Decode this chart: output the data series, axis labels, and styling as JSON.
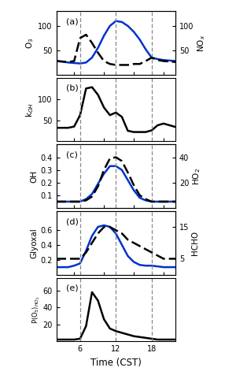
{
  "time": [
    2,
    3,
    4,
    5,
    6,
    7,
    8,
    9,
    10,
    11,
    12,
    13,
    14,
    15,
    16,
    17,
    18,
    19,
    20,
    21,
    22
  ],
  "panel_a": {
    "O3": [
      28,
      27,
      25,
      24,
      23,
      25,
      35,
      55,
      80,
      100,
      110,
      108,
      100,
      88,
      72,
      52,
      35,
      32,
      30,
      29,
      28
    ],
    "NOx": [
      28,
      27,
      26,
      28,
      75,
      82,
      65,
      45,
      28,
      22,
      20,
      20,
      20,
      22,
      22,
      28,
      35,
      30,
      28,
      27,
      26
    ],
    "O3_ylim": [
      0,
      130
    ],
    "NOx_ylim": [
      0,
      130
    ],
    "O3_yticks": [
      50,
      100
    ],
    "NOx_yticks": [
      50,
      100
    ],
    "label": "(a)"
  },
  "panel_b": {
    "kOH": [
      32,
      32,
      32,
      35,
      62,
      125,
      128,
      110,
      80,
      62,
      68,
      58,
      25,
      22,
      22,
      22,
      26,
      38,
      42,
      38,
      34
    ],
    "ylim": [
      0,
      150
    ],
    "yticks": [
      50,
      100
    ],
    "label": "(b)"
  },
  "panel_c": {
    "OH": [
      0.05,
      0.05,
      0.05,
      0.05,
      0.05,
      0.07,
      0.11,
      0.19,
      0.27,
      0.33,
      0.33,
      0.3,
      0.22,
      0.14,
      0.08,
      0.06,
      0.05,
      0.05,
      0.05,
      0.05,
      0.05
    ],
    "HO2": [
      5,
      5,
      5,
      5,
      5,
      6,
      9,
      17,
      30,
      39,
      40,
      37,
      28,
      18,
      10,
      7,
      5,
      5,
      5,
      5,
      5
    ],
    "OH_ylim": [
      0,
      0.5
    ],
    "HO2_ylim": [
      0,
      50
    ],
    "OH_yticks": [
      0.1,
      0.2,
      0.3,
      0.4
    ],
    "HO2_yticks": [
      20,
      40
    ],
    "label": "(c)"
  },
  "panel_d": {
    "Glyoxal": [
      0.1,
      0.1,
      0.1,
      0.12,
      0.15,
      0.32,
      0.52,
      0.64,
      0.66,
      0.64,
      0.55,
      0.4,
      0.25,
      0.17,
      0.13,
      0.12,
      0.12,
      0.11,
      0.1,
      0.1,
      0.1
    ],
    "HCHO": [
      5,
      5,
      5,
      5,
      5,
      7,
      10,
      13,
      15,
      15,
      14,
      13,
      11,
      10,
      9,
      8,
      7,
      6,
      5,
      5,
      5
    ],
    "Glyoxal_ylim": [
      0,
      0.85
    ],
    "HCHO_ylim": [
      0,
      20
    ],
    "Glyoxal_yticks": [
      0.2,
      0.4,
      0.6
    ],
    "HCHO_yticks": [
      5,
      15
    ],
    "label": "(d)"
  },
  "panel_e": {
    "PO3HO2": [
      2,
      2,
      2,
      2,
      3,
      18,
      58,
      48,
      26,
      15,
      12,
      10,
      8,
      6,
      5,
      4,
      3,
      2,
      2,
      2,
      2
    ],
    "ylim": [
      0,
      75
    ],
    "yticks": [
      20,
      40,
      60
    ],
    "label": "(e)"
  },
  "vlines": [
    6,
    12,
    18
  ],
  "xticks": [
    6,
    12,
    18
  ],
  "xlim": [
    2,
    22
  ],
  "blue": "#0033cc",
  "black": "#000000",
  "vline_color": "#888888"
}
